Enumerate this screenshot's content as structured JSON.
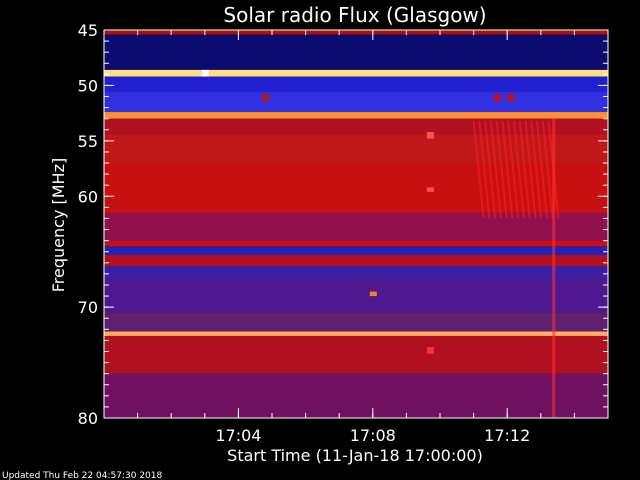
{
  "chart_data": {
    "type": "heatmap",
    "title": "Solar radio Flux (Glasgow)",
    "xlabel": "Start Time (11-Jan-18 17:00:00)",
    "ylabel": "Frequency [MHz]",
    "x_unit": "minutes after 17:00:00",
    "xlim": [
      0,
      15
    ],
    "ylim": [
      45,
      80
    ],
    "y_inverted": true,
    "x_ticks": [
      {
        "value": 4,
        "label": "17:04"
      },
      {
        "value": 8,
        "label": "17:08"
      },
      {
        "value": 12,
        "label": "17:12"
      }
    ],
    "y_ticks": [
      {
        "value": 45,
        "label": "45"
      },
      {
        "value": 50,
        "label": "50"
      },
      {
        "value": 55,
        "label": "55"
      },
      {
        "value": 60,
        "label": "60"
      },
      {
        "value": 70,
        "label": "70"
      },
      {
        "value": 80,
        "label": "80"
      }
    ],
    "bands": [
      {
        "from": 45.0,
        "to": 45.4,
        "color": "#b01000"
      },
      {
        "from": 45.4,
        "to": 48.6,
        "color": "#0c0c70"
      },
      {
        "from": 48.6,
        "to": 49.2,
        "color": "#ffe080"
      },
      {
        "from": 49.2,
        "to": 50.6,
        "color": "#2020d0"
      },
      {
        "from": 50.6,
        "to": 52.4,
        "color": "#3030e0"
      },
      {
        "from": 52.4,
        "to": 53.0,
        "color": "#ff9030"
      },
      {
        "from": 53.0,
        "to": 54.4,
        "color": "#b01020"
      },
      {
        "from": 54.4,
        "to": 57.0,
        "color": "#c01818"
      },
      {
        "from": 57.0,
        "to": 61.5,
        "color": "#c81010"
      },
      {
        "from": 61.5,
        "to": 64.0,
        "color": "#901050"
      },
      {
        "from": 64.0,
        "to": 64.5,
        "color": "#cc1010"
      },
      {
        "from": 64.5,
        "to": 65.3,
        "color": "#2a20b0"
      },
      {
        "from": 65.3,
        "to": 66.3,
        "color": "#b01020"
      },
      {
        "from": 66.3,
        "to": 67.5,
        "color": "#3a20a0"
      },
      {
        "from": 67.5,
        "to": 70.5,
        "color": "#501890"
      },
      {
        "from": 70.5,
        "to": 72.2,
        "color": "#602070"
      },
      {
        "from": 72.2,
        "to": 72.6,
        "color": "#ffb060"
      },
      {
        "from": 72.6,
        "to": 76.0,
        "color": "#b01020"
      },
      {
        "from": 76.0,
        "to": 80.0,
        "color": "#701060"
      }
    ],
    "features": [
      {
        "t": 3.0,
        "f1": 48.6,
        "f2": 49.2,
        "color": "#ffffff"
      },
      {
        "t": 4.8,
        "f1": 50.8,
        "f2": 51.4,
        "color": "#c01010"
      },
      {
        "t": 11.7,
        "f1": 50.8,
        "f2": 51.4,
        "color": "#c01010"
      },
      {
        "t": 12.1,
        "f1": 50.8,
        "f2": 51.4,
        "color": "#c01010"
      },
      {
        "t": 8.0,
        "f1": 68.6,
        "f2": 69.0,
        "color": "#ff8020"
      },
      {
        "t": 9.7,
        "f1": 54.2,
        "f2": 54.8,
        "color": "#ff5050"
      },
      {
        "t": 9.7,
        "f1": 59.2,
        "f2": 59.6,
        "color": "#ff5050"
      },
      {
        "t": 9.7,
        "f1": 73.6,
        "f2": 74.2,
        "color": "#ff3030"
      }
    ],
    "burst": {
      "t_start": 11.0,
      "t_end": 13.4,
      "color": "#ff2020"
    }
  },
  "footer": "Updated Thu Feb 22 04:57:30 2018"
}
